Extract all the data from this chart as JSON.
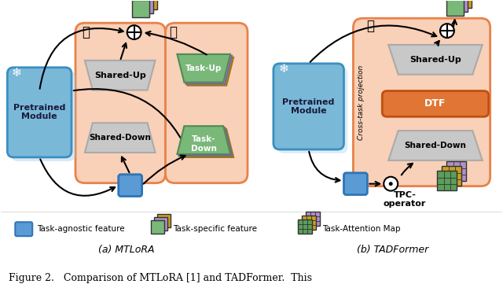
{
  "fig_width": 6.4,
  "fig_height": 3.75,
  "bg_color": "#ffffff",
  "orange_bg": "#f9d0b8",
  "orange_border": "#e8824a",
  "blue_box": "#7ab8d8",
  "blue_box_light": "#aed4ea",
  "blue_border": "#3a8fc0",
  "gray_trap": "#c8c8c8",
  "gray_border": "#aaaaaa",
  "green_color": "#7ab87a",
  "green_dark": "#4e8b55",
  "green_grid": "#5a9e5a",
  "purple_color": "#b090c8",
  "yellow_color": "#c8a020",
  "dtf_color": "#e07535",
  "dtf_border": "#c05010",
  "caption_text": "Figure 2.   Comparison of MTLoRA [1] and TADFormer.  This",
  "label_a": "(a) MTLoRA",
  "label_b": "(b) TADFormer"
}
